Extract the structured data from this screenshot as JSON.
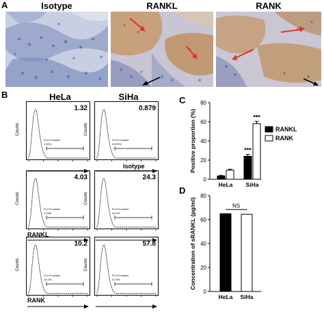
{
  "panel_a": {
    "letter": "A",
    "images": [
      {
        "title": "Isotype"
      },
      {
        "title": "RANKL"
      },
      {
        "title": "RANK"
      }
    ]
  },
  "panel_b": {
    "letter": "B",
    "columns": [
      "HeLa",
      "SiHa"
    ],
    "y_axis_label": "Counts",
    "gate_label": "FL2-H subset",
    "rows": [
      {
        "label": "Isotype",
        "cells": [
          {
            "value": "1.32",
            "gate_pct": "1.32%"
          },
          {
            "value": "0.879",
            "gate_pct": "0.879%"
          }
        ]
      },
      {
        "label": "RANKL",
        "cells": [
          {
            "value": "4.03",
            "gate_pct": "4.03%"
          },
          {
            "value": "24.3",
            "gate_pct": "24.3%"
          }
        ]
      },
      {
        "label": "RANK",
        "cells": [
          {
            "value": "10.2",
            "gate_pct": "10.2%"
          },
          {
            "value": "57.8",
            "gate_pct": "57.8%"
          }
        ]
      }
    ]
  },
  "chart_data": [
    {
      "panel": "C",
      "type": "bar",
      "ylabel": "Positive proportion (%)",
      "ylim": [
        0,
        80
      ],
      "yticks": [
        0,
        20,
        40,
        60,
        80
      ],
      "categories": [
        "HeLa",
        "SiHa"
      ],
      "series": [
        {
          "name": "RANKL",
          "color": "#000000",
          "values": [
            3.5,
            24
          ],
          "errors": [
            0.6,
            2.0
          ],
          "annotations": [
            "",
            "***"
          ]
        },
        {
          "name": "RANK",
          "color": "#ffffff",
          "values": [
            9.5,
            58
          ],
          "errors": [
            1.0,
            2.5
          ],
          "annotations": [
            "",
            "***"
          ]
        }
      ],
      "legend_position": "right"
    },
    {
      "panel": "D",
      "type": "bar",
      "ylabel": "Concentration of sRANKL (pg/ml)",
      "ylim": [
        0,
        80
      ],
      "yticks": [
        0,
        20,
        40,
        60,
        80
      ],
      "categories": [
        "HeLa",
        "SiHa"
      ],
      "values": [
        65,
        64.5
      ],
      "colors": [
        "#000000",
        "#ffffff"
      ],
      "significance": {
        "between": [
          0,
          1
        ],
        "label": "NS"
      }
    }
  ]
}
